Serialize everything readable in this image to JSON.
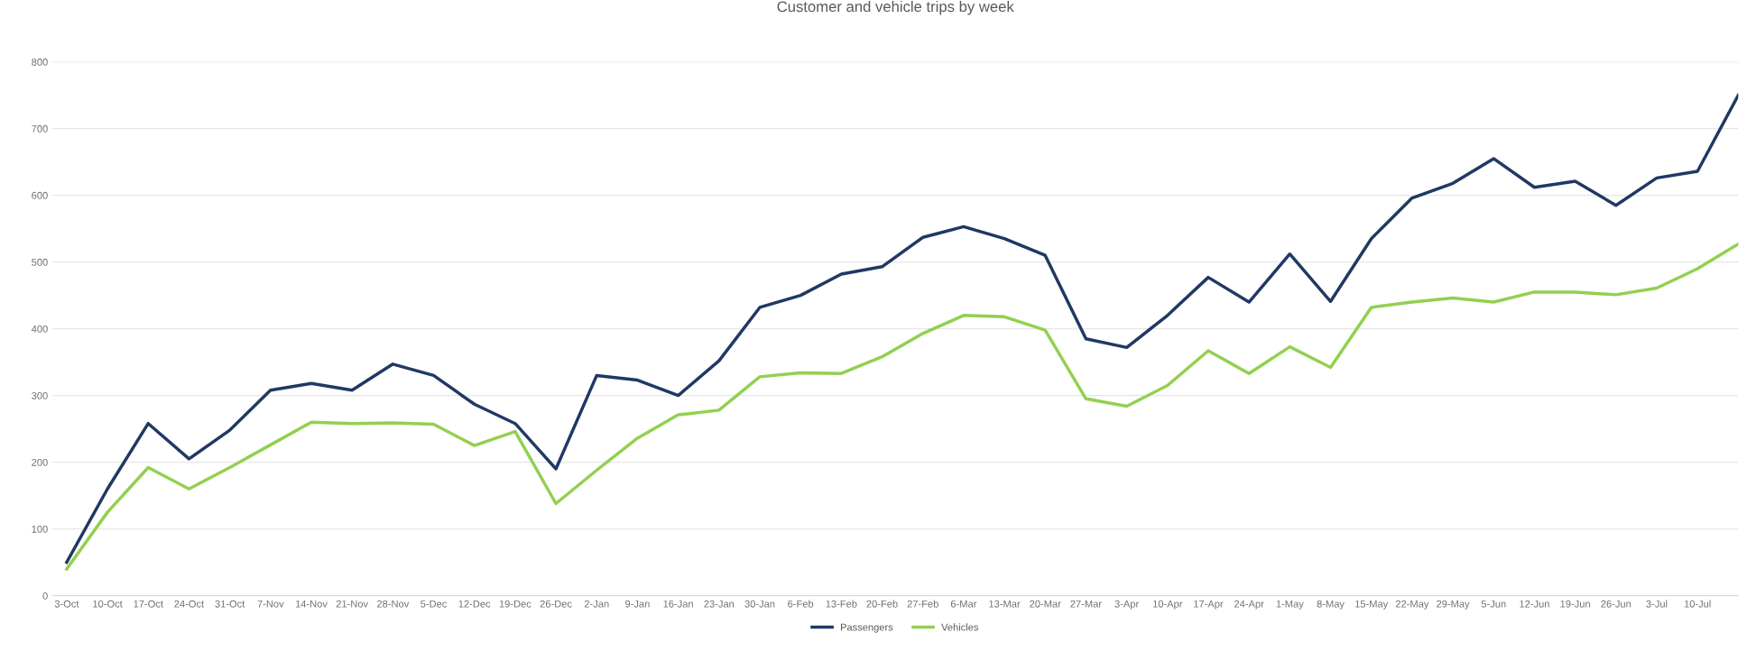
{
  "chart_data": {
    "type": "line",
    "title": "Customer and vehicle trips by week",
    "categories": [
      "3-Oct",
      "10-Oct",
      "17-Oct",
      "24-Oct",
      "31-Oct",
      "7-Nov",
      "14-Nov",
      "21-Nov",
      "28-Nov",
      "5-Dec",
      "12-Dec",
      "19-Dec",
      "26-Dec",
      "2-Jan",
      "9-Jan",
      "16-Jan",
      "23-Jan",
      "30-Jan",
      "6-Feb",
      "13-Feb",
      "20-Feb",
      "27-Feb",
      "6-Mar",
      "13-Mar",
      "20-Mar",
      "27-Mar",
      "3-Apr",
      "10-Apr",
      "17-Apr",
      "24-Apr",
      "1-May",
      "8-May",
      "15-May",
      "22-May",
      "29-May",
      "5-Jun",
      "12-Jun",
      "19-Jun",
      "26-Jun",
      "3-Jul",
      "10-Jul",
      null
    ],
    "series": [
      {
        "name": "Passengers",
        "color": "#203864",
        "values": [
          50,
          160,
          258,
          205,
          248,
          308,
          318,
          308,
          347,
          330,
          287,
          258,
          190,
          330,
          323,
          300,
          352,
          432,
          450,
          482,
          493,
          537,
          553,
          535,
          510,
          385,
          372,
          420,
          477,
          440,
          512,
          441,
          535,
          596,
          618,
          655,
          612,
          621,
          585,
          626,
          636,
          750
        ]
      },
      {
        "name": "Vehicles",
        "color": "#92d050",
        "values": [
          40,
          125,
          192,
          160,
          192,
          226,
          260,
          258,
          259,
          257,
          225,
          246,
          138,
          188,
          236,
          271,
          278,
          328,
          334,
          333,
          358,
          393,
          420,
          418,
          398,
          295,
          284,
          315,
          367,
          333,
          373,
          342,
          432,
          440,
          446,
          440,
          455,
          455,
          451,
          461,
          490,
          527
        ]
      }
    ],
    "ylim": [
      0,
      800
    ],
    "yticks": [
      0,
      100,
      200,
      300,
      400,
      500,
      600,
      700,
      800
    ],
    "grid": "y",
    "legend": "bottom",
    "marker": "none",
    "line_style": "solid"
  }
}
